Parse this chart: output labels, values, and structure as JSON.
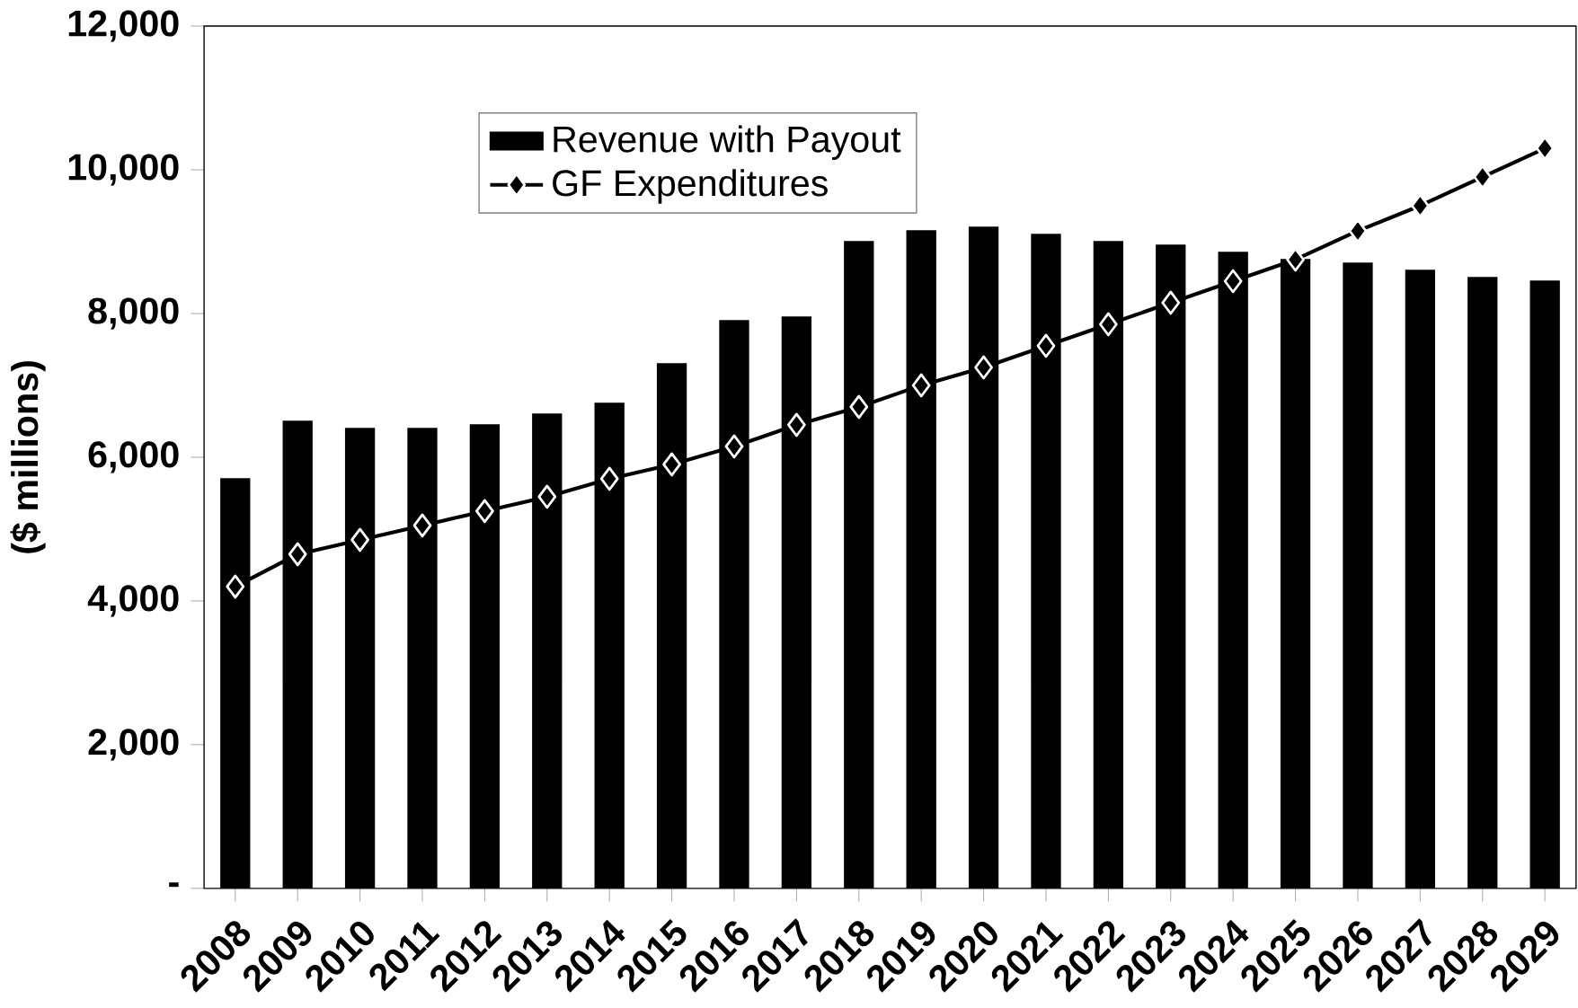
{
  "chart_data": {
    "type": "bar",
    "ylabel": "($ millions)",
    "categories": [
      "2008",
      "2009",
      "2010",
      "2011",
      "2012",
      "2013",
      "2014",
      "2015",
      "2016",
      "2017",
      "2018",
      "2019",
      "2020",
      "2021",
      "2022",
      "2023",
      "2024",
      "2025",
      "2026",
      "2027",
      "2028",
      "2029"
    ],
    "series": [
      {
        "name": "Revenue with Payout",
        "color": "#000000",
        "values": [
          5700,
          6500,
          6400,
          6400,
          6450,
          6600,
          6750,
          7300,
          7900,
          7950,
          9000,
          9150,
          9200,
          9100,
          9000,
          8950,
          8850,
          8750,
          8700,
          8600,
          8500,
          8450
        ]
      },
      {
        "name": "GF Expenditures",
        "type": "line",
        "color": "#000000",
        "marker": "diamond",
        "values": [
          4200,
          4650,
          4850,
          5050,
          5250,
          5450,
          5700,
          5900,
          6150,
          6450,
          6700,
          7000,
          7250,
          7550,
          7850,
          8150,
          8450,
          8750,
          9150,
          9500,
          9900,
          10300
        ]
      }
    ],
    "ylim": [
      0,
      12000
    ],
    "yticks": [
      {
        "value": 0,
        "label": "-"
      },
      {
        "value": 2000,
        "label": "2,000"
      },
      {
        "value": 4000,
        "label": "4,000"
      },
      {
        "value": 6000,
        "label": "6,000"
      },
      {
        "value": 8000,
        "label": "8,000"
      },
      {
        "value": 10000,
        "label": "10,000"
      },
      {
        "value": 12000,
        "label": "12,000"
      }
    ],
    "grid": false,
    "legend": "top left"
  }
}
